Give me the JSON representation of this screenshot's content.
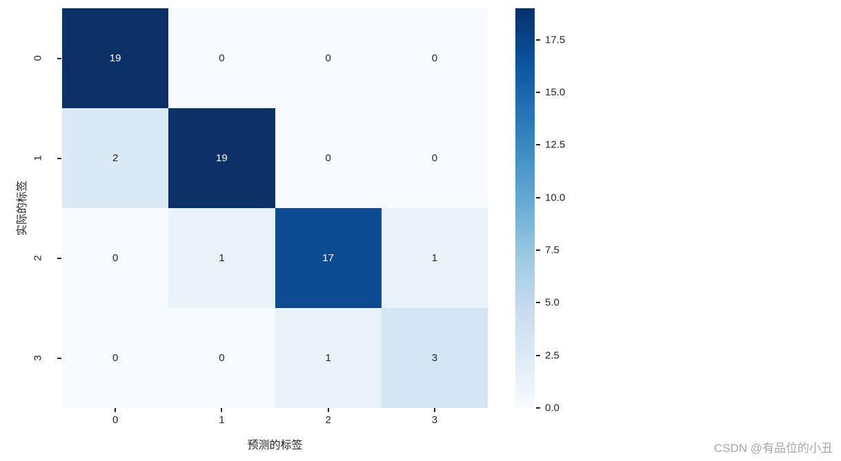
{
  "chart_data": {
    "type": "heatmap",
    "title": "",
    "xlabel": "预测的标签",
    "ylabel": "实际的标签",
    "x_categories": [
      "0",
      "1",
      "2",
      "3"
    ],
    "y_categories": [
      "0",
      "1",
      "2",
      "3"
    ],
    "matrix": [
      [
        19,
        0,
        0,
        0
      ],
      [
        2,
        19,
        0,
        0
      ],
      [
        0,
        1,
        17,
        1
      ],
      [
        0,
        0,
        1,
        3
      ]
    ],
    "vmin": 0,
    "vmax": 19,
    "colormap": "Blues",
    "value_colors": {
      "0": "#f7fbff",
      "1": "#e9f1fa",
      "2": "#dce9f6",
      "3": "#d3e4f3",
      "17": "#0d4a91",
      "19": "#0b3166"
    },
    "white_text_threshold": 10,
    "colorbar": {
      "gradient_stops": [
        "#f7fbff",
        "#deebf7",
        "#c6dbef",
        "#9ecae1",
        "#6baed6",
        "#4292c6",
        "#2171b5",
        "#08519c",
        "#08306b"
      ],
      "ticks": [
        {
          "value": 0,
          "label": "0.0"
        },
        {
          "value": 2.5,
          "label": "2.5"
        },
        {
          "value": 5,
          "label": "5.0"
        },
        {
          "value": 7.5,
          "label": "7.5"
        },
        {
          "value": 10,
          "label": "10.0"
        },
        {
          "value": 12.5,
          "label": "12.5"
        },
        {
          "value": 15,
          "label": "15.0"
        },
        {
          "value": 17.5,
          "label": "17.5"
        }
      ]
    },
    "legend_position": "right",
    "grid": false
  },
  "watermark": "CSDN @有品位的小丑"
}
